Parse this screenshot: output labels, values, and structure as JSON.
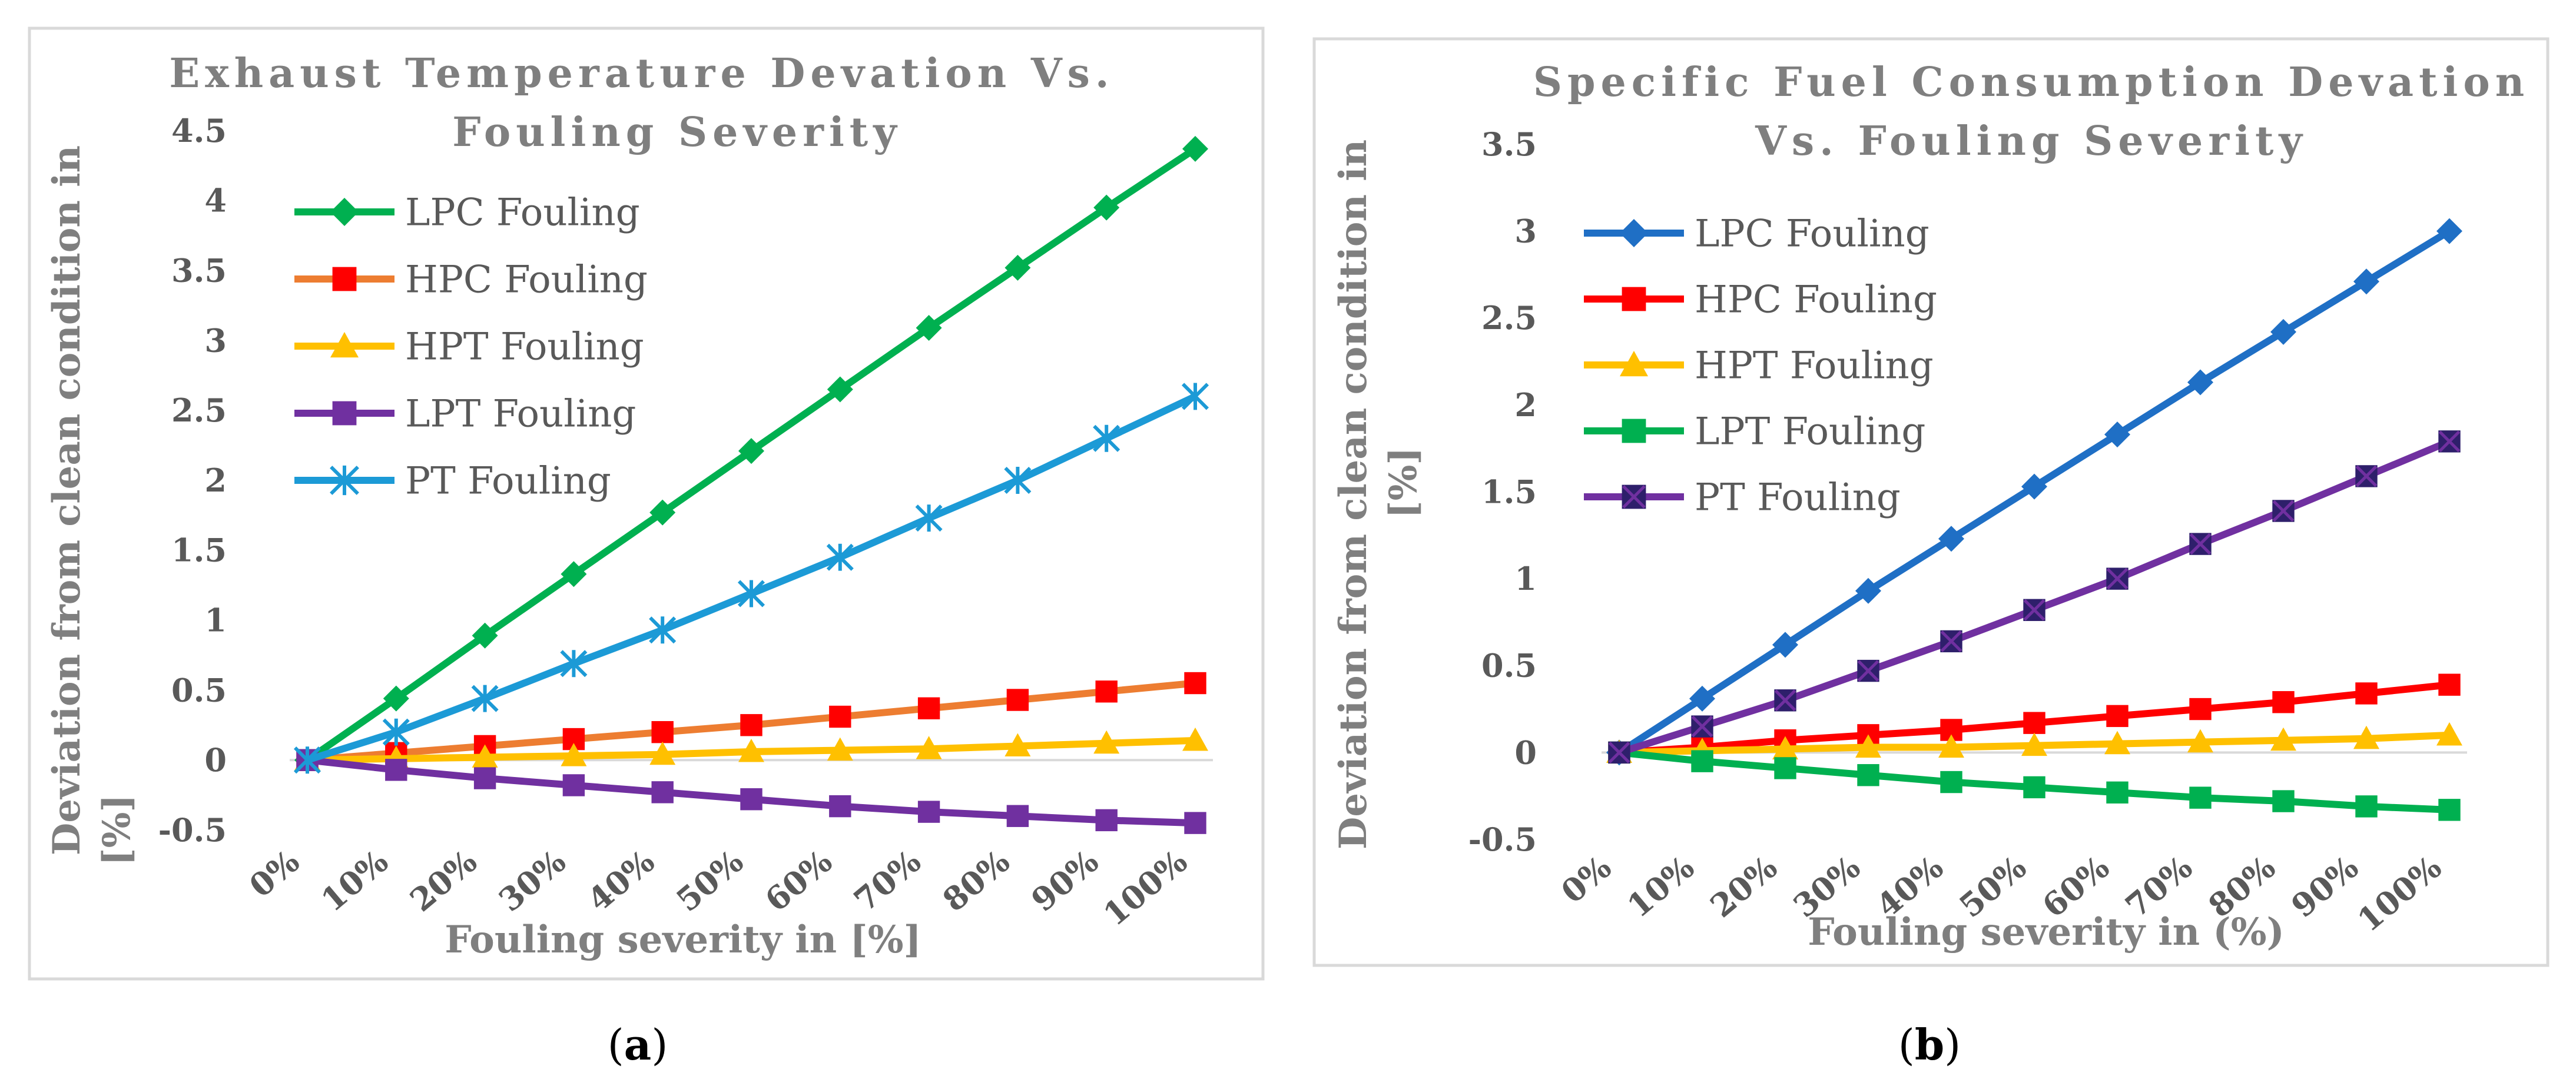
{
  "chart_data": [
    {
      "type": "line",
      "panel": "a",
      "title_lines": [
        "Exhaust Temperature Devation Vs.",
        "Fouling Severity"
      ],
      "xlabel": "Fouling severity in [%]",
      "ylabel_lines": [
        "Deviation  from clean condition in",
        "[%]"
      ],
      "categories": [
        "0%",
        "10%",
        "20%",
        "30%",
        "40%",
        "50%",
        "60%",
        "70%",
        "80%",
        "90%",
        "100%"
      ],
      "ylim": [
        -0.5,
        4.5
      ],
      "yticks": [
        -0.5,
        0,
        0.5,
        1,
        1.5,
        2,
        2.5,
        3,
        3.5,
        4,
        4.5
      ],
      "ytick_labels": [
        "-0.5",
        "0",
        "0.5",
        "1",
        "1.5",
        "2",
        "2.5",
        "3",
        "3.5",
        "4",
        "4.5"
      ],
      "grid": false,
      "legend_position": "top-left",
      "series": [
        {
          "name": "LPC Fouling",
          "color": "#00b050",
          "marker": "diamond",
          "values": [
            0,
            0.44,
            0.89,
            1.33,
            1.77,
            2.21,
            2.65,
            3.09,
            3.52,
            3.95,
            4.37
          ]
        },
        {
          "name": "HPC Fouling",
          "color": "#ed7d31",
          "marker_color": "#ff0000",
          "marker": "square",
          "values": [
            0,
            0.05,
            0.1,
            0.15,
            0.2,
            0.25,
            0.31,
            0.37,
            0.43,
            0.49,
            0.55
          ]
        },
        {
          "name": "HPT Fouling",
          "color": "#ffc000",
          "marker": "triangle",
          "values": [
            0,
            0.01,
            0.02,
            0.03,
            0.04,
            0.06,
            0.07,
            0.08,
            0.1,
            0.12,
            0.14
          ]
        },
        {
          "name": "LPT Fouling",
          "color": "#7030a0",
          "marker": "square",
          "values": [
            0,
            -0.07,
            -0.13,
            -0.18,
            -0.23,
            -0.28,
            -0.33,
            -0.37,
            -0.4,
            -0.43,
            -0.45
          ]
        },
        {
          "name": "PT Fouling",
          "color": "#1c9ad6",
          "marker": "asterisk",
          "values": [
            0,
            0.2,
            0.44,
            0.69,
            0.93,
            1.19,
            1.45,
            1.73,
            2.0,
            2.3,
            2.6
          ]
        }
      ]
    },
    {
      "type": "line",
      "panel": "b",
      "title_lines": [
        "Specific Fuel Consumption Devation",
        "Vs. Fouling Severity"
      ],
      "xlabel": "Fouling severity in (%)",
      "ylabel_lines": [
        "Deviation from clean condition in",
        "[%]"
      ],
      "categories": [
        "0%",
        "10%",
        "20%",
        "30%",
        "40%",
        "50%",
        "60%",
        "70%",
        "80%",
        "90%",
        "100%"
      ],
      "ylim": [
        -0.5,
        3.5
      ],
      "yticks": [
        -0.5,
        0,
        0.5,
        1,
        1.5,
        2,
        2.5,
        3,
        3.5
      ],
      "ytick_labels": [
        "-0.5",
        "0",
        "0.5",
        "1",
        "1.5",
        "2",
        "2.5",
        "3",
        "3.5"
      ],
      "grid": false,
      "legend_position": "top-left",
      "series": [
        {
          "name": "LPC Fouling",
          "color": "#1f6fc5",
          "marker": "diamond",
          "values": [
            0,
            0.31,
            0.62,
            0.93,
            1.23,
            1.53,
            1.83,
            2.13,
            2.42,
            2.71,
            3.0
          ]
        },
        {
          "name": "HPC Fouling",
          "color": "#ff0000",
          "marker": "square",
          "values": [
            0,
            0.03,
            0.07,
            0.1,
            0.13,
            0.17,
            0.21,
            0.25,
            0.29,
            0.34,
            0.39
          ]
        },
        {
          "name": "HPT Fouling",
          "color": "#ffc000",
          "marker": "triangle",
          "values": [
            0,
            0.01,
            0.02,
            0.03,
            0.03,
            0.04,
            0.05,
            0.06,
            0.07,
            0.08,
            0.1
          ]
        },
        {
          "name": "LPT Fouling",
          "color": "#00b050",
          "marker": "square",
          "values": [
            0,
            -0.05,
            -0.09,
            -0.13,
            -0.17,
            -0.2,
            -0.23,
            -0.26,
            -0.28,
            -0.31,
            -0.33
          ]
        },
        {
          "name": "PT Fouling",
          "color": "#7030a0",
          "marker": "xsquare",
          "values": [
            0,
            0.15,
            0.3,
            0.47,
            0.64,
            0.82,
            1.0,
            1.2,
            1.39,
            1.59,
            1.79
          ]
        }
      ]
    }
  ],
  "captions": {
    "a": "(a)",
    "b": "(b)"
  },
  "caption_letters": {
    "a": "a",
    "b": "b"
  }
}
